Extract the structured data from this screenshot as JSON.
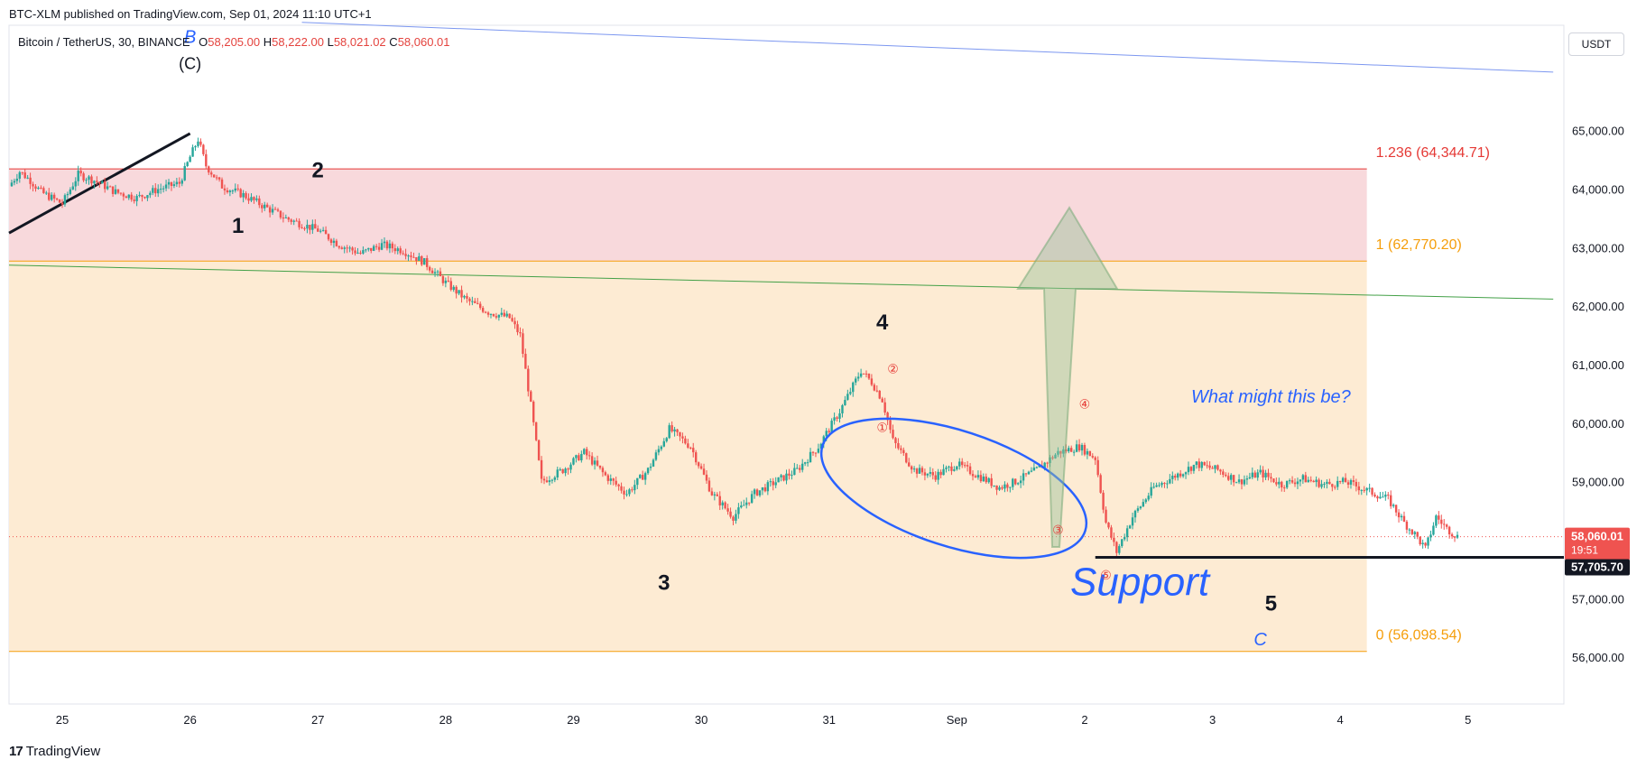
{
  "header": {
    "published_line": "BTC-XLM published on TradingView.com, Sep 01, 2024 11:10 UTC+1",
    "symbol_line": "Bitcoin / TetherUS, 30, BINANCE",
    "open_label": "O",
    "open_value": "58,205.00",
    "high_label": "H",
    "high_value": "58,222.00",
    "low_label": "L",
    "low_value": "58,021.02",
    "close_label": "C",
    "close_value": "58,060.01"
  },
  "currency_button": "USDT",
  "footer": {
    "brand": "TradingView",
    "logo": "TV-logo-icon"
  },
  "colors": {
    "up": "#26a69a",
    "down": "#ef5350",
    "red_zone": "#f8d9dc",
    "orange_zone": "#fdebd3",
    "fib_red": "#e53935",
    "fib_orange": "#f59e0b",
    "trend_green": "#43a047",
    "annotation_blue": "#2962ff"
  },
  "price_badges": {
    "last_price": "58,060.01",
    "countdown": "19:51",
    "support_price": "57,705.70"
  },
  "chart_data": {
    "type": "candlestick",
    "symbol": "Bitcoin / TetherUS",
    "interval": "30",
    "exchange": "BINANCE",
    "x_ticks": [
      "25",
      "26",
      "27",
      "28",
      "29",
      "30",
      "31",
      "Sep",
      "2",
      "3",
      "4",
      "5"
    ],
    "x_range": [
      "2024-08-24T14:00",
      "2024-09-05T18:00"
    ],
    "y_ticks": [
      "56,000.00",
      "57,000.00",
      "58,000.00",
      "59,000.00",
      "60,000.00",
      "61,000.00",
      "62,000.00",
      "63,000.00",
      "64,000.00",
      "65,000.00"
    ],
    "y_range": [
      55200,
      66800
    ],
    "price_path": [
      [
        "2024-08-24T14:00",
        64050
      ],
      [
        "2024-08-24T16:00",
        64300
      ],
      [
        "2024-08-24T18:00",
        64150
      ],
      [
        "2024-08-24T20:00",
        63950
      ],
      [
        "2024-08-25T00:00",
        63750
      ],
      [
        "2024-08-25T03:00",
        64250
      ],
      [
        "2024-08-25T06:00",
        64150
      ],
      [
        "2024-08-25T10:00",
        63950
      ],
      [
        "2024-08-25T14:00",
        63850
      ],
      [
        "2024-08-25T18:00",
        64000
      ],
      [
        "2024-08-25T22:00",
        64100
      ],
      [
        "2024-08-26T00:00",
        64550
      ],
      [
        "2024-08-26T01:30",
        64850
      ],
      [
        "2024-08-26T03:00",
        64400
      ],
      [
        "2024-08-26T06:00",
        64050
      ],
      [
        "2024-08-26T10:00",
        63900
      ],
      [
        "2024-08-26T14:00",
        63700
      ],
      [
        "2024-08-26T18:00",
        63500
      ],
      [
        "2024-08-26T21:00",
        63400
      ],
      [
        "2024-08-27T00:00",
        63300
      ],
      [
        "2024-08-27T04:00",
        63050
      ],
      [
        "2024-08-27T08:00",
        62900
      ],
      [
        "2024-08-27T12:00",
        63050
      ],
      [
        "2024-08-27T16:00",
        62950
      ],
      [
        "2024-08-27T20:00",
        62750
      ],
      [
        "2024-08-28T00:00",
        62400
      ],
      [
        "2024-08-28T04:00",
        62100
      ],
      [
        "2024-08-28T08:00",
        61900
      ],
      [
        "2024-08-28T12:00",
        61800
      ],
      [
        "2024-08-28T14:00",
        61500
      ],
      [
        "2024-08-28T16:00",
        60300
      ],
      [
        "2024-08-28T18:00",
        59000
      ],
      [
        "2024-08-28T22:00",
        59200
      ],
      [
        "2024-08-29T02:00",
        59500
      ],
      [
        "2024-08-29T06:00",
        59100
      ],
      [
        "2024-08-29T10:00",
        58800
      ],
      [
        "2024-08-29T14:00",
        59200
      ],
      [
        "2024-08-29T18:00",
        59900
      ],
      [
        "2024-08-29T22:00",
        59600
      ],
      [
        "2024-08-30T02:00",
        58800
      ],
      [
        "2024-08-30T06:00",
        58400
      ],
      [
        "2024-08-30T10:00",
        58800
      ],
      [
        "2024-08-30T14:00",
        59000
      ],
      [
        "2024-08-30T18:00",
        59200
      ],
      [
        "2024-08-30T22:00",
        59600
      ],
      [
        "2024-08-31T02:00",
        60200
      ],
      [
        "2024-08-31T06:00",
        60900
      ],
      [
        "2024-08-31T08:00",
        60700
      ],
      [
        "2024-08-31T10:00",
        60400
      ],
      [
        "2024-08-31T12:00",
        59700
      ],
      [
        "2024-08-31T16:00",
        59200
      ],
      [
        "2024-08-31T20:00",
        59100
      ],
      [
        "2024-09-01T00:00",
        59300
      ],
      [
        "2024-09-01T04:00",
        59100
      ],
      [
        "2024-09-01T08:00",
        58900
      ],
      [
        "2024-09-01T11:00",
        59000
      ],
      [
        "2024-09-01T15:00",
        59200
      ],
      [
        "2024-09-01T19:00",
        59500
      ],
      [
        "2024-09-01T23:00",
        59600
      ],
      [
        "2024-09-02T02:00",
        59400
      ],
      [
        "2024-09-02T04:00",
        58300
      ],
      [
        "2024-09-02T06:00",
        57800
      ],
      [
        "2024-09-02T09:00",
        58400
      ],
      [
        "2024-09-02T13:00",
        58900
      ],
      [
        "2024-09-02T17:00",
        59100
      ],
      [
        "2024-09-02T21:00",
        59300
      ],
      [
        "2024-09-03T01:00",
        59200
      ],
      [
        "2024-09-03T05:00",
        59000
      ],
      [
        "2024-09-03T09:00",
        59150
      ],
      [
        "2024-09-03T13:00",
        58950
      ],
      [
        "2024-09-03T17:00",
        59050
      ],
      [
        "2024-09-03T21:00",
        58950
      ],
      [
        "2024-09-04T01:00",
        59000
      ],
      [
        "2024-09-04T05:00",
        58850
      ],
      [
        "2024-09-04T09:00",
        58700
      ],
      [
        "2024-09-04T12:00",
        58300
      ],
      [
        "2024-09-04T14:00",
        58100
      ],
      [
        "2024-09-04T16:00",
        57850
      ],
      [
        "2024-09-04T18:00",
        58400
      ],
      [
        "2024-09-04T20:00",
        58200
      ],
      [
        "2024-09-04T22:00",
        58060
      ]
    ],
    "fib_levels": [
      {
        "label": "1.236 (64,344.71)",
        "price": 64344.71,
        "color": "#e53935"
      },
      {
        "label": "1 (62,770.20)",
        "price": 62770.2,
        "color": "#f59e0b"
      },
      {
        "label": "0 (56,098.54)",
        "price": 56098.54,
        "color": "#f59e0b"
      }
    ],
    "support": {
      "label": "Support",
      "price": 57705.7,
      "from": "2024-09-02T02:00"
    },
    "horizontal_line_last": 58060.01,
    "wave_labels": [
      {
        "text": "B",
        "t": "2024-08-26T00:00",
        "price": 66500,
        "style": "blue-italic"
      },
      {
        "text": "(C)",
        "t": "2024-08-26T00:00",
        "price": 66050,
        "style": "black"
      },
      {
        "text": "1",
        "t": "2024-08-26T09:00",
        "price": 63250,
        "style": "black-bold"
      },
      {
        "text": "2",
        "t": "2024-08-27T00:00",
        "price": 64200,
        "style": "black-bold"
      },
      {
        "text": "3",
        "t": "2024-08-29T17:00",
        "price": 57150,
        "style": "black-bold"
      },
      {
        "text": "4",
        "t": "2024-08-31T10:00",
        "price": 61600,
        "style": "black-bold"
      },
      {
        "text": "5",
        "t": "2024-09-03T11:00",
        "price": 56800,
        "style": "black-bold"
      },
      {
        "text": "C",
        "t": "2024-09-03T09:00",
        "price": 56200,
        "style": "blue-italic"
      }
    ],
    "minor_wave_labels": [
      {
        "text": "①",
        "t": "2024-08-31T10:00",
        "price": 59850
      },
      {
        "text": "②",
        "t": "2024-08-31T12:00",
        "price": 60850
      },
      {
        "text": "③",
        "t": "2024-09-01T19:00",
        "price": 58100
      },
      {
        "text": "④",
        "t": "2024-09-02T00:00",
        "price": 60250
      },
      {
        "text": "⑤",
        "t": "2024-09-02T04:00",
        "price": 57330
      }
    ],
    "annotation": {
      "text": "What might this be?",
      "t": "2024-09-02T20:00",
      "price": 60350
    },
    "trend_lines": [
      {
        "name": "blue-resistance",
        "from": [
          "2024-08-26T21:00",
          66850
        ],
        "to": [
          "2024-09-05T16:00",
          66000
        ],
        "color": "#7c97f0"
      },
      {
        "name": "green-trend",
        "from": [
          "2024-08-24T14:00",
          62700
        ],
        "to": [
          "2024-09-05T16:00",
          62120
        ],
        "color": "#43a047"
      },
      {
        "name": "black-trend",
        "from": [
          "2024-08-24T14:00",
          63250
        ],
        "to": [
          "2024-08-26T00:00",
          64950
        ],
        "color": "#131722"
      }
    ]
  }
}
